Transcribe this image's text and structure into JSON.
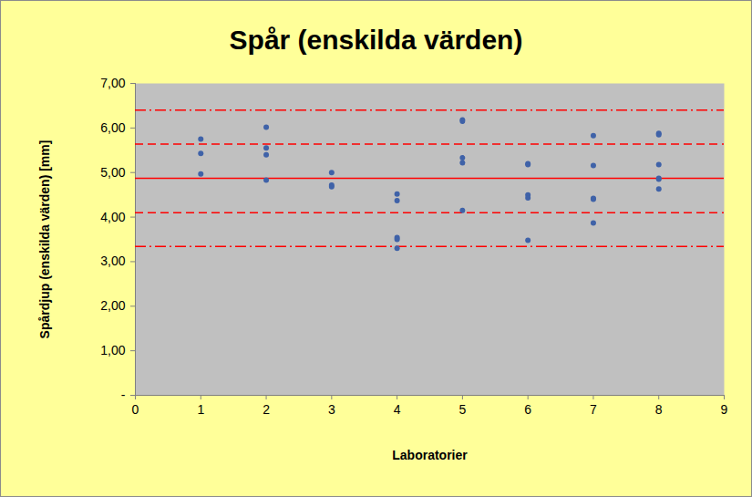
{
  "chart_data": {
    "type": "scatter",
    "title": "Spår (enskilda värden)",
    "x_label": "Laboratorier",
    "y_label": "Spårdjup (enskilda värden) [mm]",
    "x": [
      1,
      1,
      1,
      2,
      2,
      2,
      2,
      3,
      3,
      3,
      4,
      4,
      4,
      4,
      4,
      5,
      5,
      5,
      5,
      5,
      6,
      6,
      6,
      6,
      6,
      7,
      7,
      7,
      7,
      7,
      8,
      8,
      8,
      8,
      8,
      8
    ],
    "values": [
      5.75,
      5.43,
      4.97,
      6.02,
      5.55,
      5.4,
      4.83,
      5.0,
      4.72,
      4.68,
      4.52,
      4.37,
      3.54,
      3.5,
      3.3,
      6.18,
      6.15,
      5.33,
      5.22,
      4.15,
      5.2,
      5.18,
      4.5,
      4.43,
      3.48,
      5.83,
      5.16,
      4.42,
      4.4,
      3.87,
      5.88,
      5.85,
      5.18,
      4.87,
      4.85,
      4.63
    ],
    "color": "#3f62a8",
    "marker": "circle",
    "reference_lines": [
      {
        "value": 4.87,
        "line_style": "solid",
        "color": "#ff0000"
      },
      {
        "value": 5.64,
        "line_style": "dashed",
        "color": "#ff0000"
      },
      {
        "value": 4.1,
        "line_style": "dashed",
        "color": "#ff0000"
      },
      {
        "value": 6.4,
        "line_style": "dashdot",
        "color": "#ff0000"
      },
      {
        "value": 3.34,
        "line_style": "dashdot",
        "color": "#ff0000"
      }
    ],
    "xlim": [
      0,
      9
    ],
    "xticks": [
      0,
      1,
      2,
      3,
      4,
      5,
      6,
      7,
      8,
      9
    ],
    "ylim": [
      0,
      7
    ],
    "yticks": [
      {
        "value": 0,
        "label": "-"
      },
      {
        "value": 1,
        "label": "1,00"
      },
      {
        "value": 2,
        "label": "2,00"
      },
      {
        "value": 3,
        "label": "3,00"
      },
      {
        "value": 4,
        "label": "4,00"
      },
      {
        "value": 5,
        "label": "5,00"
      },
      {
        "value": 6,
        "label": "6,00"
      },
      {
        "value": 7,
        "label": "7,00"
      }
    ],
    "grid": false
  }
}
